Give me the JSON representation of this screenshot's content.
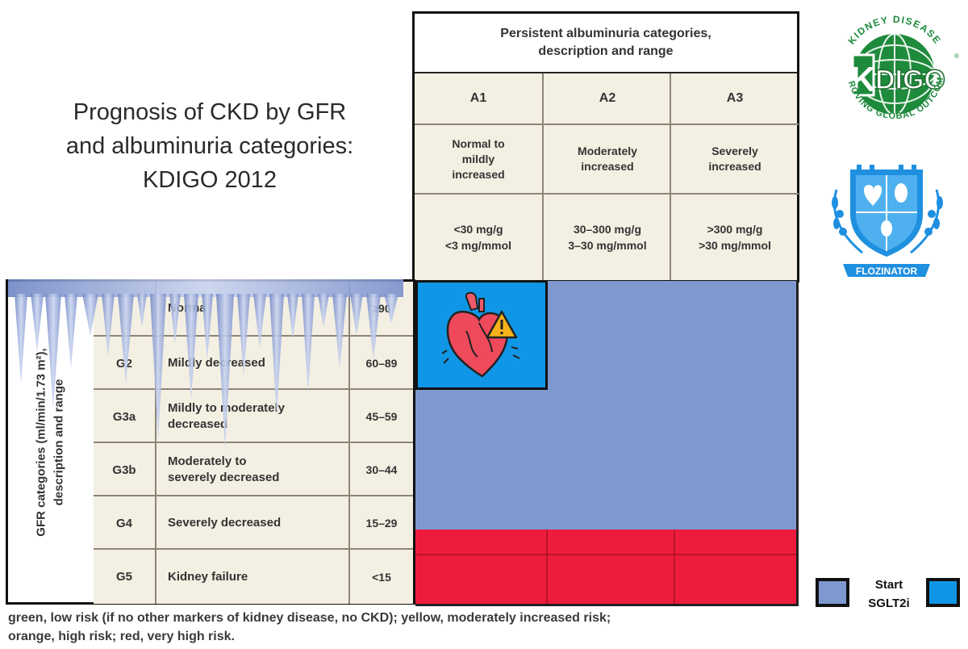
{
  "title": {
    "line1": "Prognosis of CKD by GFR",
    "line2": "and albuminuria categories:",
    "line3": "KDIGO 2012"
  },
  "albuminuria": {
    "header_line1": "Persistent albuminuria categories,",
    "header_line2": "description and range",
    "columns": [
      {
        "code": "A1",
        "desc": [
          "Normal to",
          "mildly",
          "increased"
        ],
        "range": [
          "<30 mg/g",
          "<3 mg/mmol"
        ]
      },
      {
        "code": "A2",
        "desc": [
          "Moderately",
          "increased"
        ],
        "range": [
          "30–300 mg/g",
          "3–30 mg/mmol"
        ]
      },
      {
        "code": "A3",
        "desc": [
          "Severely",
          "increased"
        ],
        "range": [
          ">300 mg/g",
          ">30 mg/mmol"
        ]
      }
    ]
  },
  "gfr": {
    "label_line1": "GFR categories (ml/min/1.73 m²),",
    "label_line2": "description and range",
    "rows": [
      {
        "code": "",
        "desc": [
          "Norma"
        ],
        "range": "≥90"
      },
      {
        "code": "G2",
        "desc": [
          "Mildly decreased"
        ],
        "range": "60–89"
      },
      {
        "code": "G3a",
        "desc": [
          "Mildly to moderately",
          "decreased"
        ],
        "range": "45–59"
      },
      {
        "code": "G3b",
        "desc": [
          "Moderately to",
          "severely decreased"
        ],
        "range": "30–44"
      },
      {
        "code": "G4",
        "desc": [
          "Severely decreased"
        ],
        "range": "15–29"
      },
      {
        "code": "G5",
        "desc": [
          "Kidney failure"
        ],
        "range": "<15"
      }
    ]
  },
  "footnote": {
    "line1": "green, low risk (if no other markers of kidney disease, no CKD); yellow, moderately increased risk;",
    "line2": "orange, high risk; red, very high risk."
  },
  "legend": {
    "line1": "Start",
    "line2": "SGLT2i"
  },
  "logos": {
    "kdigo_letters": "KDIGO",
    "kdigo_ring_top": "KIDNEY DISEASE",
    "kdigo_ring_bottom": "IMPROVING GLOBAL OUTCOMES",
    "flozinator": "FLOZINATOR"
  },
  "colors": {
    "sglt2i_start": "#7e98d0",
    "sglt2i_blue": "#1096e6",
    "very_high_risk": "#ee1c3c",
    "table_bg": "#f3efe2",
    "kdigo_green": "#1e8a3c"
  },
  "icons": {
    "heart": "heart-warning-icon",
    "kdigo": "kdigo-logo",
    "flozinator": "flozinator-logo"
  }
}
